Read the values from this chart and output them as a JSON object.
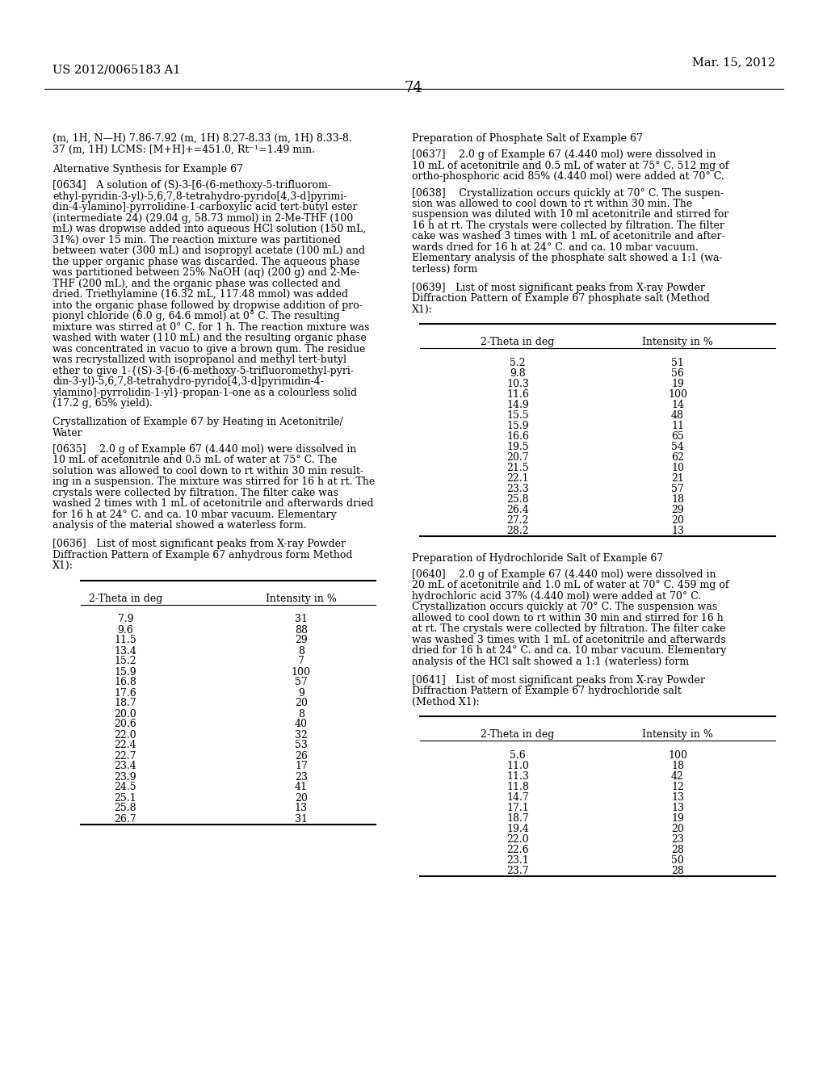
{
  "page_header_left": "US 2012/0065183 A1",
  "page_header_right": "Mar. 15, 2012",
  "page_number": "74",
  "left_column": {
    "intro_text_line1": "(m, 1H, N—H) 7.86-7.92 (m, 1H) 8.27-8.33 (m, 1H) 8.33-8.",
    "intro_text_line2": "37 (m, 1H) LCMS: [M+H]+=451.0, Rt⁻¹=1.49 min.",
    "section1_title": "Alternative Synthesis for Example 67",
    "para0634_lines": [
      "[0634] A solution of (S)-3-[6-(6-methoxy-5-trifluorom-",
      "ethyl-pyridin-3-yl)-5,6,7,8-tetrahydro-pyrido[4,3-d]pyrimi-",
      "din-4-ylamino]-pyrrolidine-1-carboxylic acid tert-butyl ester",
      "(intermediate 24) (29.04 g, 58.73 mmol) in 2-Me-THF (100",
      "mL) was dropwise added into aqueous HCl solution (150 mL,",
      "31%) over 15 min. The reaction mixture was partitioned",
      "between water (300 mL) and isopropyl acetate (100 mL) and",
      "the upper organic phase was discarded. The aqueous phase",
      "was partitioned between 25% NaOH (aq) (200 g) and 2-Me-",
      "THF (200 mL), and the organic phase was collected and",
      "dried. Triethylamine (16.32 mL, 117.48 mmol) was added",
      "into the organic phase followed by dropwise addition of pro-",
      "pionyl chloride (6.0 g, 64.6 mmol) at 0° C. The resulting",
      "mixture was stirred at 0° C. for 1 h. The reaction mixture was",
      "washed with water (110 mL) and the resulting organic phase",
      "was concentrated in vacuo to give a brown gum. The residue",
      "was recrystallized with isopropanol and methyl tert-butyl",
      "ether to give 1-{(S)-3-[6-(6-methoxy-5-trifluoromethyl-pyri-",
      "din-3-yl)-5,6,7,8-tetrahydro-pyrido[4,3-d]pyrimidin-4-",
      "ylamino]-pyrrolidin-1-yl}-propan-1-one as a colourless solid",
      "(17.2 g, 65% yield)."
    ],
    "section2_title_lines": [
      "Crystallization of Example 67 by Heating in Acetonitrile/",
      "Water"
    ],
    "para0635_lines": [
      "[0635]  2.0 g of Example 67 (4.440 mol) were dissolved in",
      "10 mL of acetonitrile and 0.5 mL of water at 75° C. The",
      "solution was allowed to cool down to rt within 30 min result-",
      "ing in a suspension. The mixture was stirred for 16 h at rt. The",
      "crystals were collected by filtration. The filter cake was",
      "washed 2 times with 1 mL of acetonitrile and afterwards dried",
      "for 16 h at 24° C. and ca. 10 mbar vacuum. Elementary",
      "analysis of the material showed a waterless form."
    ],
    "para0636_lines": [
      "[0636] List of most significant peaks from X-ray Powder",
      "Diffraction Pattern of Example 67 anhydrous form Method",
      "X1):"
    ],
    "table1_headers": [
      "2-Theta in deg",
      "Intensity in %"
    ],
    "table1_data": [
      [
        "7.9",
        "31"
      ],
      [
        "9.6",
        "88"
      ],
      [
        "11.5",
        "29"
      ],
      [
        "13.4",
        "8"
      ],
      [
        "15.2",
        "7"
      ],
      [
        "15.9",
        "100"
      ],
      [
        "16.8",
        "57"
      ],
      [
        "17.6",
        "9"
      ],
      [
        "18.7",
        "20"
      ],
      [
        "20.0",
        "8"
      ],
      [
        "20.6",
        "40"
      ],
      [
        "22.0",
        "32"
      ],
      [
        "22.4",
        "53"
      ],
      [
        "22.7",
        "26"
      ],
      [
        "23.4",
        "17"
      ],
      [
        "23.9",
        "23"
      ],
      [
        "24.5",
        "41"
      ],
      [
        "25.1",
        "20"
      ],
      [
        "25.8",
        "13"
      ],
      [
        "26.7",
        "31"
      ]
    ]
  },
  "right_column": {
    "section3_title": "Preparation of Phosphate Salt of Example 67",
    "para0637_lines": [
      "[0637]  2.0 g of Example 67 (4.440 mol) were dissolved in",
      "10 mL of acetonitrile and 0.5 mL of water at 75° C. 512 mg of",
      "ortho-phosphoric acid 85% (4.440 mol) were added at 70° C."
    ],
    "para0638_lines": [
      "[0638]  Crystallization occurs quickly at 70° C. The suspen-",
      "sion was allowed to cool down to rt within 30 min. The",
      "suspension was diluted with 10 ml acetonitrile and stirred for",
      "16 h at rt. The crystals were collected by filtration. The filter",
      "cake was washed 3 times with 1 mL of acetonitrile and after-",
      "wards dried for 16 h at 24° C. and ca. 10 mbar vacuum.",
      "Elementary analysis of the phosphate salt showed a 1:1 (wa-",
      "terless) form"
    ],
    "para0639_lines": [
      "[0639] List of most significant peaks from X-ray Powder",
      "Diffraction Pattern of Example 67 phosphate salt (Method",
      "X1):"
    ],
    "table2_headers": [
      "2-Theta in deg",
      "Intensity in %"
    ],
    "table2_data": [
      [
        "5.2",
        "51"
      ],
      [
        "9.8",
        "56"
      ],
      [
        "10.3",
        "19"
      ],
      [
        "11.6",
        "100"
      ],
      [
        "14.9",
        "14"
      ],
      [
        "15.5",
        "48"
      ],
      [
        "15.9",
        "11"
      ],
      [
        "16.6",
        "65"
      ],
      [
        "19.5",
        "54"
      ],
      [
        "20.7",
        "62"
      ],
      [
        "21.5",
        "10"
      ],
      [
        "22.1",
        "21"
      ],
      [
        "23.3",
        "57"
      ],
      [
        "25.8",
        "18"
      ],
      [
        "26.4",
        "29"
      ],
      [
        "27.2",
        "20"
      ],
      [
        "28.2",
        "13"
      ]
    ],
    "section4_title": "Preparation of Hydrochloride Salt of Example 67",
    "para0640_lines": [
      "[0640]  2.0 g of Example 67 (4.440 mol) were dissolved in",
      "20 mL of acetonitrile and 1.0 mL of water at 70° C. 459 mg of",
      "hydrochloric acid 37% (4.440 mol) were added at 70° C.",
      "Crystallization occurs quickly at 70° C. The suspension was",
      "allowed to cool down to rt within 30 min and stirred for 16 h",
      "at rt. The crystals were collected by filtration. The filter cake",
      "was washed 3 times with 1 mL of acetonitrile and afterwards",
      "dried for 16 h at 24° C. and ca. 10 mbar vacuum. Elementary",
      "analysis of the HCl salt showed a 1:1 (waterless) form"
    ],
    "para0641_lines": [
      "[0641] List of most significant peaks from X-ray Powder",
      "Diffraction Pattern of Example 67 hydrochloride salt",
      "(Method X1):"
    ],
    "table3_headers": [
      "2-Theta in deg",
      "Intensity in %"
    ],
    "table3_data": [
      [
        "5.6",
        "100"
      ],
      [
        "11.0",
        "18"
      ],
      [
        "11.3",
        "42"
      ],
      [
        "11.8",
        "12"
      ],
      [
        "14.7",
        "13"
      ],
      [
        "17.1",
        "13"
      ],
      [
        "18.7",
        "19"
      ],
      [
        "19.4",
        "20"
      ],
      [
        "22.0",
        "23"
      ],
      [
        "22.6",
        "28"
      ],
      [
        "23.1",
        "50"
      ],
      [
        "23.7",
        "28"
      ]
    ]
  },
  "bg_color": "#ffffff",
  "text_color": "#000000",
  "font_size_body": 9.0,
  "font_size_section": 9.2,
  "font_size_header_text": 10.5,
  "font_size_page_num": 13.0
}
